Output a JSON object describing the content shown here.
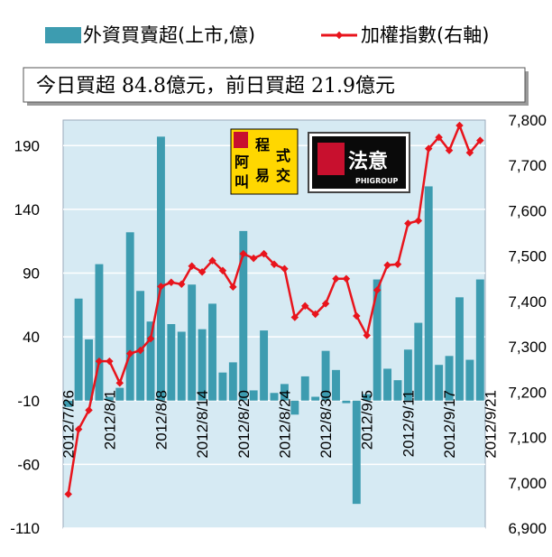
{
  "legend": {
    "bar_label": "外資買賣超(上市,億)",
    "line_label": "加權指數(右軸)"
  },
  "summary": "今日買超 84.8億元，前日買超 21.9億元",
  "logos": {
    "logo1_chars": [
      "程",
      "式",
      "阿",
      "叫",
      "易",
      "交"
    ],
    "logo2_main": "法意",
    "logo2_sub": "PHIGROUP"
  },
  "colors": {
    "bar": "#3d9cb0",
    "line": "#e8141c",
    "plot_bg": "#d6eaf3",
    "logo1_bg": "#ffd700",
    "logo2_bg": "#0a0a0a"
  },
  "chart_data": {
    "type": "bar+line",
    "left_axis": {
      "min": -110,
      "max": 210,
      "ticks": [
        190,
        140,
        90,
        40,
        -10,
        -60,
        -110
      ]
    },
    "right_axis": {
      "min": 6900,
      "max": 7800,
      "ticks": [
        "7,800",
        "7,700",
        "7,600",
        "7,500",
        "7,400",
        "7,300",
        "7,200",
        "7,100",
        "7,000",
        "6,900"
      ],
      "tick_values": [
        7800,
        7700,
        7600,
        7500,
        7400,
        7300,
        7200,
        7100,
        7000,
        6900
      ]
    },
    "x_ticks": [
      {
        "label": "2012/7/26",
        "index": 0
      },
      {
        "label": "2012/8/1",
        "index": 4
      },
      {
        "label": "2012/8/8",
        "index": 9
      },
      {
        "label": "2012/8/14",
        "index": 13
      },
      {
        "label": "2012/8/20",
        "index": 17
      },
      {
        "label": "2012/8/24",
        "index": 21
      },
      {
        "label": "2012/8/30",
        "index": 25
      },
      {
        "label": "2012/9/5",
        "index": 29
      },
      {
        "label": "2012/9/11",
        "index": 33
      },
      {
        "label": "2012/9/17",
        "index": 37
      },
      {
        "label": "2012/9/21",
        "index": 41
      }
    ],
    "series": [
      {
        "name": "外資買賣超(上市,億)",
        "kind": "bar",
        "axis": "left",
        "values": [
          -15,
          70,
          38,
          97,
          -7,
          0,
          122,
          76,
          52,
          197,
          50,
          44,
          81,
          46,
          66,
          12,
          20,
          123,
          -2,
          45,
          -4,
          3,
          -21,
          9,
          -7,
          29,
          14,
          -12,
          -91,
          -5,
          85,
          15,
          6,
          30,
          51,
          158,
          18,
          25,
          71,
          22,
          85
        ]
      },
      {
        "name": "加權指數(右軸)",
        "kind": "line",
        "axis": "right",
        "values": [
          6975,
          7118,
          7160,
          7268,
          7268,
          7220,
          7285,
          7292,
          7318,
          7433,
          7442,
          7438,
          7478,
          7465,
          7490,
          7468,
          7432,
          7505,
          7495,
          7505,
          7482,
          7472,
          7365,
          7390,
          7372,
          7395,
          7450,
          7450,
          7368,
          7325,
          7425,
          7480,
          7482,
          7572,
          7578,
          7737,
          7762,
          7733,
          7788,
          7728,
          7755
        ]
      }
    ]
  }
}
